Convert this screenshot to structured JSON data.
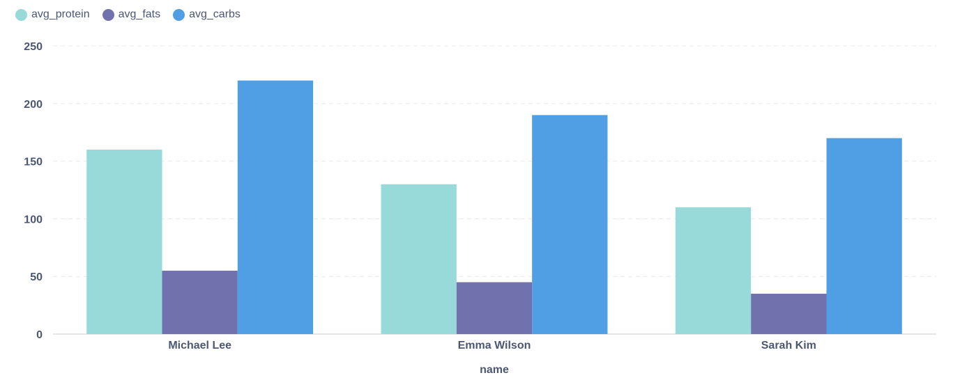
{
  "chart_data": {
    "type": "bar",
    "categories": [
      "Michael Lee",
      "Emma Wilson",
      "Sarah Kim"
    ],
    "series": [
      {
        "name": "avg_protein",
        "color": "#98d9d9",
        "values": [
          160,
          130,
          110
        ]
      },
      {
        "name": "avg_fats",
        "color": "#7172ad",
        "values": [
          55,
          45,
          35
        ]
      },
      {
        "name": "avg_carbs",
        "color": "#509ee3",
        "values": [
          220,
          190,
          170
        ]
      }
    ],
    "xlabel": "name",
    "ylabel": "",
    "ylim": [
      0,
      250
    ],
    "yticks": [
      0,
      50,
      100,
      150,
      200,
      250
    ],
    "grid": true,
    "legend": "top-left"
  }
}
